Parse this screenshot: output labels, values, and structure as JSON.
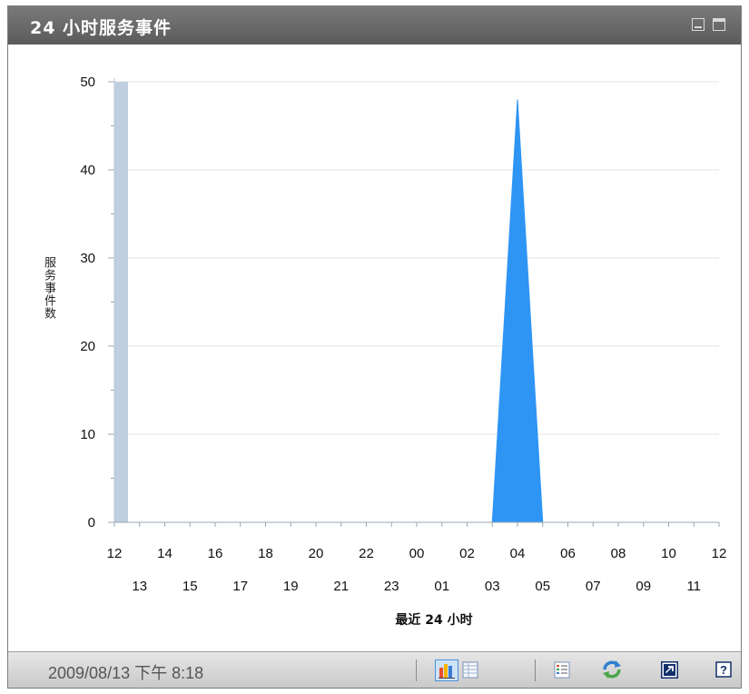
{
  "panel": {
    "title": "24 小时服务事件"
  },
  "footer": {
    "timestamp": "2009/08/13 下午 8:18",
    "icons": [
      "bar-chart-icon",
      "table-view-icon",
      "legend-icon",
      "refresh-icon",
      "open-window-icon",
      "help-icon"
    ],
    "help_label": "?"
  },
  "colors": {
    "title_bar": "#666666",
    "area_fill": "#2e95f4",
    "first_bar": "#bfcfdf",
    "grid": "#e3e3e3"
  },
  "chart_data": {
    "type": "area",
    "ylabel": "服务事件数",
    "xlabel": "最近 24 小时",
    "ylim": [
      0,
      50
    ],
    "yticks": [
      "0",
      "10",
      "20",
      "30",
      "40",
      "50"
    ],
    "xticks_top": [
      "12",
      "14",
      "16",
      "18",
      "20",
      "22",
      "00",
      "02",
      "04",
      "06",
      "08",
      "10",
      "12"
    ],
    "xticks_bottom": [
      "13",
      "15",
      "17",
      "19",
      "21",
      "23",
      "01",
      "03",
      "05",
      "07",
      "09",
      "11"
    ],
    "series": [
      {
        "x": [
          "12",
          "13",
          "14",
          "15",
          "16",
          "17",
          "18",
          "19",
          "20",
          "21",
          "22",
          "23",
          "00",
          "01",
          "02",
          "03",
          "04",
          "05",
          "06",
          "07",
          "08",
          "09",
          "10",
          "11",
          "12"
        ],
        "values": [
          0,
          0,
          0,
          0,
          0,
          0,
          0,
          0,
          0,
          0,
          0,
          0,
          0,
          0,
          0,
          0,
          48,
          0,
          0,
          0,
          0,
          0,
          0,
          0,
          0
        ]
      }
    ],
    "first_bar_value": 50,
    "grid": true
  }
}
